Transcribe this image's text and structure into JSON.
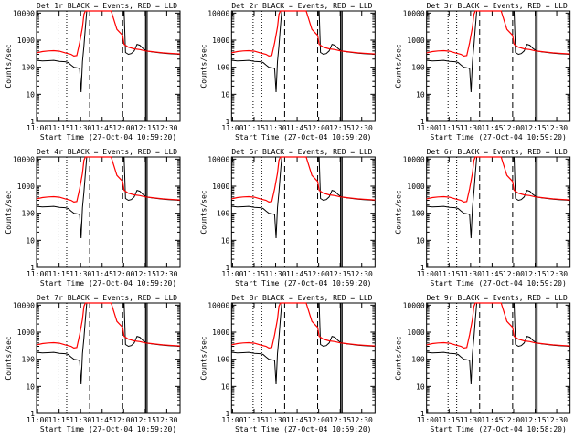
{
  "chart_data": [
    {
      "type": "line",
      "title": "Det 1r BLACK = Events, RED = LLD",
      "xlabel": "Start Time (27-Oct-04 10:59:20)",
      "ylabel": "Counts/sec",
      "x_ticks": [
        "11:00",
        "11:15",
        "11:30",
        "11:45",
        "12:00",
        "12:15",
        "12:30"
      ],
      "y_ticks": [
        "1",
        "10",
        "100",
        "1000",
        "10000"
      ],
      "yscale": "log",
      "xlim_minutes": [
        0,
        100
      ],
      "ylim": [
        1,
        12000
      ],
      "series_colors": {
        "Events": "#000000",
        "LLD": "#ff0000"
      },
      "dotted_markers_minutes": [
        15,
        21
      ],
      "dashed_markers_minutes": [
        37,
        60
      ],
      "solid_markers_minutes": [
        76,
        77
      ]
    },
    {
      "type": "line",
      "title": "Det 2r BLACK = Events, RED = LLD",
      "xlabel": "Start Time (27-Oct-04 10:59:20)",
      "ylabel": "Counts/sec",
      "x_ticks": [
        "11:00",
        "11:15",
        "11:30",
        "11:45",
        "12:00",
        "12:15",
        "12:30"
      ],
      "y_ticks": [
        "1",
        "10",
        "100",
        "1000",
        "10000"
      ],
      "yscale": "log",
      "xlim_minutes": [
        0,
        100
      ],
      "ylim": [
        1,
        12000
      ],
      "series_colors": {
        "Events": "#000000",
        "LLD": "#ff0000"
      },
      "dotted_markers_minutes": [
        15,
        21
      ],
      "dashed_markers_minutes": [
        37,
        60
      ],
      "solid_markers_minutes": [
        76,
        77
      ]
    },
    {
      "type": "line",
      "title": "Det 3r BLACK = Events, RED = LLD",
      "xlabel": "Start Time (27-Oct-04 10:59:20)",
      "ylabel": "Counts/sec",
      "x_ticks": [
        "11:00",
        "11:15",
        "11:30",
        "11:45",
        "12:00",
        "12:15",
        "12:30"
      ],
      "y_ticks": [
        "1",
        "10",
        "100",
        "1000",
        "10000"
      ],
      "yscale": "log",
      "xlim_minutes": [
        0,
        100
      ],
      "ylim": [
        1,
        12000
      ],
      "series_colors": {
        "Events": "#000000",
        "LLD": "#ff0000"
      },
      "dotted_markers_minutes": [
        15,
        21
      ],
      "dashed_markers_minutes": [
        37,
        60
      ],
      "solid_markers_minutes": [
        76,
        77
      ]
    },
    {
      "type": "line",
      "title": "Det 4r BLACK = Events, RED = LLD",
      "xlabel": "Start Time (27-Oct-04 10:59:20)",
      "ylabel": "Counts/sec",
      "x_ticks": [
        "11:00",
        "11:15",
        "11:30",
        "11:45",
        "12:00",
        "12:15",
        "12:30"
      ],
      "y_ticks": [
        "1",
        "10",
        "100",
        "1000",
        "10000"
      ],
      "yscale": "log",
      "xlim_minutes": [
        0,
        100
      ],
      "ylim": [
        1,
        12000
      ],
      "series_colors": {
        "Events": "#000000",
        "LLD": "#ff0000"
      },
      "dotted_markers_minutes": [
        15,
        21
      ],
      "dashed_markers_minutes": [
        37,
        60
      ],
      "solid_markers_minutes": [
        76,
        77
      ]
    },
    {
      "type": "line",
      "title": "Det 5r BLACK = Events, RED = LLD",
      "xlabel": "Start Time (27-Oct-04 10:59:20)",
      "ylabel": "Counts/sec",
      "x_ticks": [
        "11:00",
        "11:15",
        "11:30",
        "11:45",
        "12:00",
        "12:15",
        "12:30"
      ],
      "y_ticks": [
        "1",
        "10",
        "100",
        "1000",
        "10000"
      ],
      "yscale": "log",
      "xlim_minutes": [
        0,
        100
      ],
      "ylim": [
        1,
        12000
      ],
      "series_colors": {
        "Events": "#000000",
        "LLD": "#ff0000"
      },
      "dotted_markers_minutes": [
        15,
        21
      ],
      "dashed_markers_minutes": [
        37,
        60
      ],
      "solid_markers_minutes": [
        76,
        77
      ]
    },
    {
      "type": "line",
      "title": "Det 6r BLACK = Events, RED = LLD",
      "xlabel": "Start Time (27-Oct-04 10:59:20)",
      "ylabel": "Counts/sec",
      "x_ticks": [
        "11:00",
        "11:15",
        "11:30",
        "11:45",
        "12:00",
        "12:15",
        "12:30"
      ],
      "y_ticks": [
        "1",
        "10",
        "100",
        "1000",
        "10000"
      ],
      "yscale": "log",
      "xlim_minutes": [
        0,
        100
      ],
      "ylim": [
        1,
        12000
      ],
      "series_colors": {
        "Events": "#000000",
        "LLD": "#ff0000"
      },
      "dotted_markers_minutes": [
        15,
        21
      ],
      "dashed_markers_minutes": [
        37,
        60
      ],
      "solid_markers_minutes": [
        76,
        77
      ]
    },
    {
      "type": "line",
      "title": "Det 7r BLACK = Events, RED = LLD",
      "xlabel": "Start Time (27-Oct-04 10:59:20)",
      "ylabel": "Counts/sec",
      "x_ticks": [
        "11:00",
        "11:15",
        "11:30",
        "11:45",
        "12:00",
        "12:15",
        "12:30"
      ],
      "y_ticks": [
        "1",
        "10",
        "100",
        "1000",
        "10000"
      ],
      "yscale": "log",
      "xlim_minutes": [
        0,
        100
      ],
      "ylim": [
        1,
        12000
      ],
      "series_colors": {
        "Events": "#000000",
        "LLD": "#ff0000"
      },
      "dotted_markers_minutes": [
        15,
        21
      ],
      "dashed_markers_minutes": [
        37,
        60
      ],
      "solid_markers_minutes": [
        76,
        77
      ]
    },
    {
      "type": "line",
      "title": "Det 8r BLACK = Events, RED = LLD",
      "xlabel": "Start Time (27-Oct-04 10:59:20)",
      "ylabel": "Counts/sec",
      "x_ticks": [
        "11:00",
        "11:15",
        "11:30",
        "11:45",
        "12:00",
        "12:15",
        "12:30"
      ],
      "y_ticks": [
        "1",
        "10",
        "100",
        "1000",
        "10000"
      ],
      "yscale": "log",
      "xlim_minutes": [
        0,
        100
      ],
      "ylim": [
        1,
        12000
      ],
      "series_colors": {
        "Events": "#000000",
        "LLD": "#ff0000"
      },
      "dotted_markers_minutes": [
        15,
        21
      ],
      "dashed_markers_minutes": [
        37,
        60
      ],
      "solid_markers_minutes": [
        76,
        77
      ]
    },
    {
      "type": "line",
      "title": "Det 9r BLACK = Events, RED = LLD",
      "xlabel": "Start Time (27-Oct-04 10:58:20)",
      "ylabel": "Counts/sec",
      "x_ticks": [
        "11:00",
        "11:15",
        "11:30",
        "11:45",
        "12:00",
        "12:15",
        "12:30"
      ],
      "y_ticks": [
        "1",
        "10",
        "100",
        "1000",
        "10000"
      ],
      "yscale": "log",
      "xlim_minutes": [
        0,
        100
      ],
      "ylim": [
        1,
        12000
      ],
      "series_colors": {
        "Events": "#000000",
        "LLD": "#ff0000"
      },
      "dotted_markers_minutes": [
        15,
        21
      ],
      "dashed_markers_minutes": [
        37,
        60
      ],
      "solid_markers_minutes": [
        76,
        77
      ]
    }
  ],
  "series_points": {
    "lld_minutes": [
      0,
      4,
      8,
      12,
      16,
      20,
      24,
      26,
      28,
      30,
      32,
      33,
      34,
      35,
      36,
      37,
      38,
      40,
      44,
      48,
      52,
      56,
      60,
      61,
      62,
      64,
      68,
      72,
      76,
      80,
      84,
      88,
      92,
      96,
      100
    ],
    "lld_counts": [
      340,
      380,
      400,
      410,
      390,
      340,
      300,
      260,
      270,
      800,
      3000,
      9000,
      12000,
      12000,
      12000,
      12000,
      12000,
      12000,
      12000,
      12000,
      12000,
      2500,
      1500,
      700,
      650,
      550,
      480,
      450,
      400,
      380,
      360,
      340,
      330,
      320,
      310
    ],
    "events_minutes": [
      0,
      4,
      8,
      12,
      16,
      20,
      22,
      24,
      26,
      28,
      30,
      31,
      32,
      33,
      34,
      35,
      36,
      37,
      38,
      40,
      42,
      44,
      46,
      48,
      50,
      52,
      54,
      56,
      58,
      60,
      61,
      62,
      64,
      66,
      68,
      70,
      72,
      74,
      76,
      78,
      80,
      84,
      88,
      92,
      96,
      100
    ],
    "events_counts": [
      180,
      170,
      175,
      180,
      165,
      160,
      150,
      120,
      100,
      95,
      90,
      12,
      160,
      600,
      3000,
      12000,
      12000,
      12000,
      12000,
      12000,
      12000,
      12000,
      12000,
      12000,
      12000,
      12000,
      12000,
      12000,
      12000,
      12000,
      12000,
      350,
      300,
      320,
      400,
      700,
      650,
      500,
      420,
      390,
      370,
      350,
      330,
      320,
      310,
      300
    ]
  }
}
